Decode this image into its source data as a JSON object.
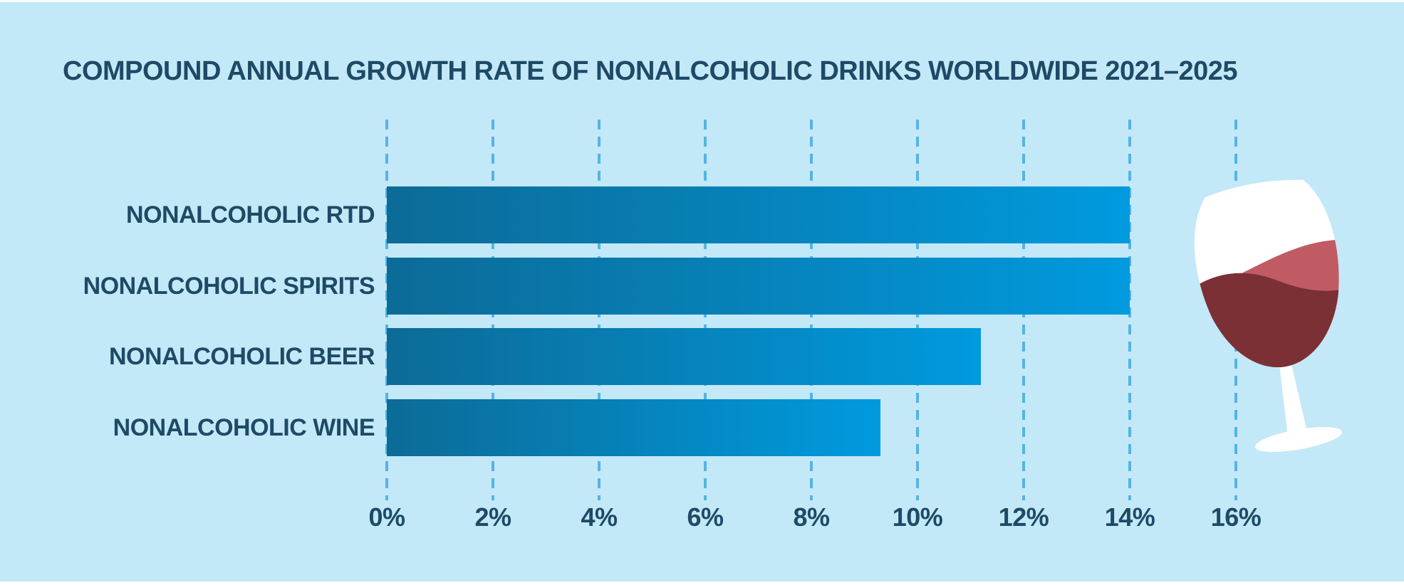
{
  "title": {
    "text": "COMPOUND ANNUAL GROWTH RATE OF NONALCOHOLIC DRINKS WORLDWIDE 2021–2025"
  },
  "chart_data": {
    "type": "bar",
    "orientation": "horizontal",
    "title": "COMPOUND ANNUAL GROWTH RATE OF NONALCOHOLIC DRINKS WORLDWIDE 2021–2025",
    "categories": [
      "NONALCOHOLIC RTD",
      "NONALCOHOLIC SPIRITS",
      "NONALCOHOLIC BEER",
      "NONALCOHOLIC WINE"
    ],
    "values": [
      14,
      14,
      11.2,
      9.3
    ],
    "unit": "%",
    "xlabel": "",
    "ylabel": "",
    "xlim": [
      0,
      16
    ],
    "x_tick_values": [
      0,
      2,
      4,
      6,
      8,
      10,
      12,
      14,
      16
    ],
    "x_tick_labels": [
      "0%",
      "2%",
      "4%",
      "6%",
      "8%",
      "10%",
      "12%",
      "14%",
      "16%"
    ],
    "grid": "vertical-dashed",
    "legend": "none"
  },
  "colors": {
    "background": "#c3e8f8",
    "edge_strip": "#ffffff",
    "title_text": "#1e4a66",
    "label_text": "#1e4a66",
    "tick_text": "#1e4a66",
    "gridline": "#55b4e5",
    "bar_gradient_start": "#0c6b97",
    "bar_gradient_end": "#009ade"
  },
  "illustration": {
    "name": "wine-glass",
    "glass_color": "#ffffff",
    "wine_color_dark": "#7b3036",
    "wine_color_light": "#c15b63"
  }
}
